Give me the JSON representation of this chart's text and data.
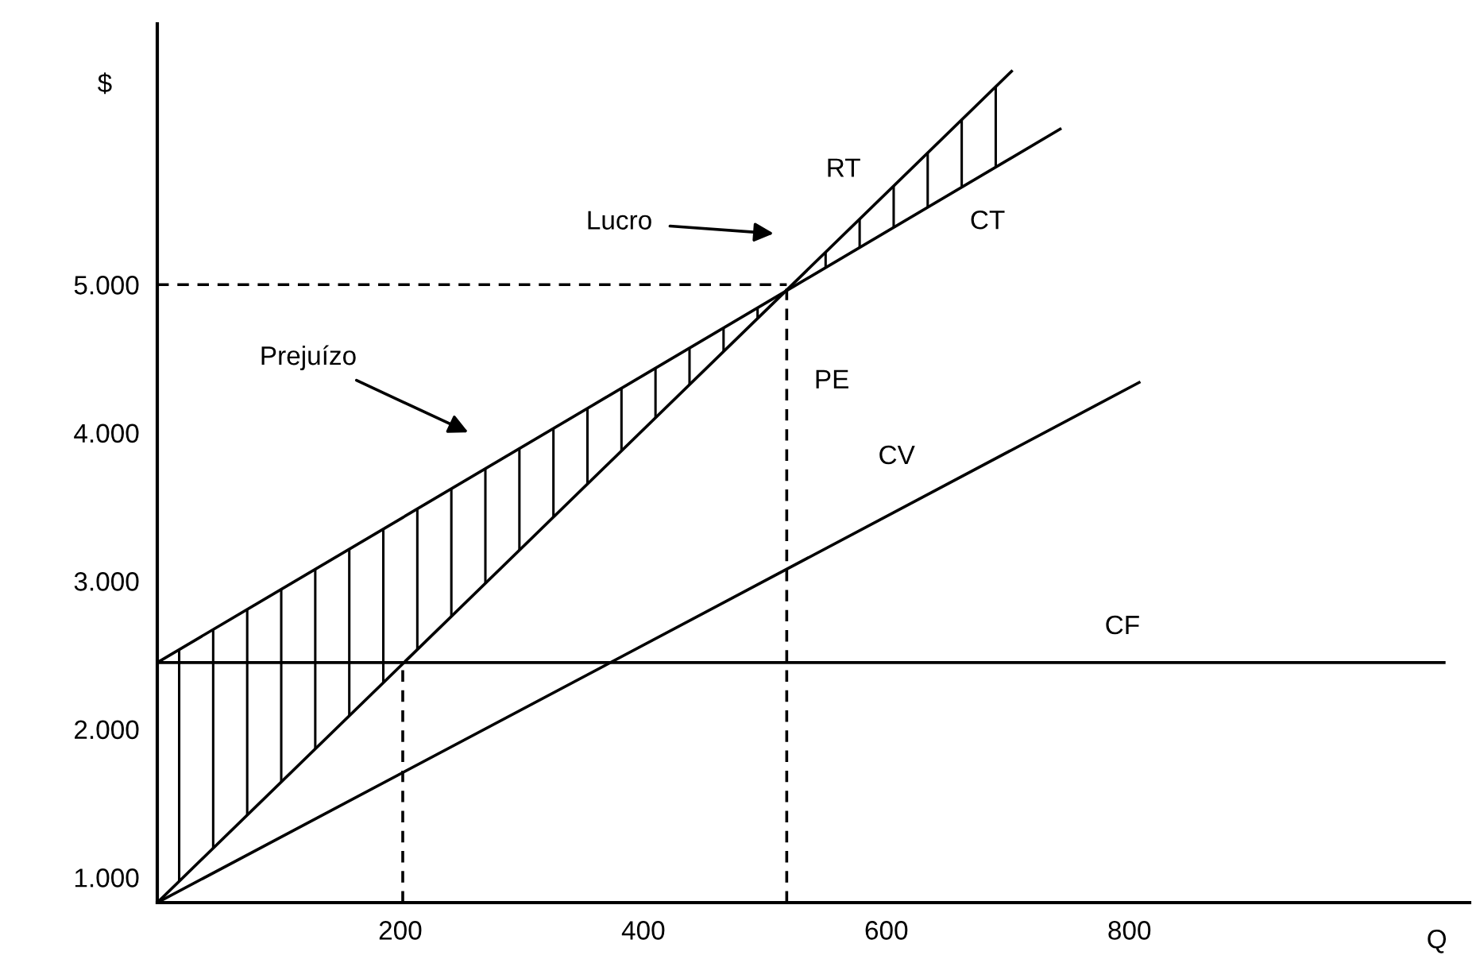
{
  "chart_data": {
    "type": "line",
    "xlabel": "Q",
    "ylabel": "$",
    "series": [
      {
        "name": "RT",
        "color": "#000000",
        "x": [
          0,
          703
        ],
        "values": [
          830,
          6440
        ]
      },
      {
        "name": "CT",
        "color": "#000000",
        "x": [
          0,
          743
        ],
        "values": [
          2450,
          6050
        ]
      },
      {
        "name": "CV",
        "color": "#000000",
        "x": [
          0,
          808
        ],
        "values": [
          830,
          4340
        ]
      },
      {
        "name": "CF",
        "color": "#000000",
        "x": [
          0,
          1059
        ],
        "values": [
          2450,
          2450
        ]
      },
      {
        "color": "#000000",
        "x": [
          0,
          518
        ],
        "values": [
          5000,
          5000
        ],
        "line_style": "dashed"
      },
      {
        "color": "#000000",
        "x": [
          518,
          518
        ],
        "values": [
          830,
          5000
        ],
        "line_style": "dashed"
      },
      {
        "color": "#000000",
        "x": [
          202,
          202
        ],
        "values": [
          830,
          2450
        ],
        "line_style": "dashed"
      }
    ],
    "annotations": [
      "PE",
      "Lucro",
      "Prejuízo"
    ],
    "xlim": [
      0,
      1080
    ],
    "ylim": [
      830,
      6760
    ],
    "xticks": [
      200,
      400,
      600,
      800
    ],
    "yticks": [
      {
        "value": 1000,
        "label": "1.000"
      },
      {
        "value": 2000,
        "label": "2.000"
      },
      {
        "value": 3000,
        "label": "3.000"
      },
      {
        "value": 4000,
        "label": "4.000"
      },
      {
        "value": 5000,
        "label": "5.000"
      }
    ],
    "grid": false,
    "legend": false,
    "marker": "none"
  }
}
